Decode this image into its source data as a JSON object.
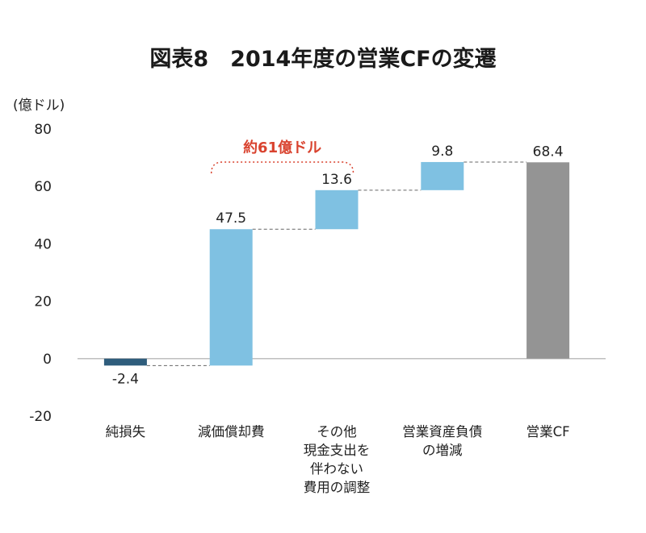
{
  "colors": {
    "background": "#ffffff",
    "negative_bar": "#2f5d7c",
    "change_bar": "#7fc1e2",
    "total_bar": "#949494",
    "annotation": "#d9432f",
    "connector": "#666666",
    "baseline": "#bfbfbf"
  },
  "chart_data": {
    "type": "bar",
    "subtype": "waterfall",
    "title": "図表8　2014年度の営業CFの変遷",
    "unit_label": "(億ドル)",
    "ylim": [
      -20,
      80
    ],
    "yticks": [
      "80",
      "60",
      "40",
      "20",
      "0",
      "-20"
    ],
    "ytick_values": [
      80,
      60,
      40,
      20,
      0,
      -20
    ],
    "grid": false,
    "legend": "none",
    "categories": [
      [
        "純損失"
      ],
      [
        "減価償却費"
      ],
      [
        "その他",
        "現金支出を",
        "伴わない",
        "費用の調整"
      ],
      [
        "営業資産負債",
        "の増減"
      ],
      [
        "営業CF"
      ]
    ],
    "values": [
      -2.4,
      47.5,
      13.6,
      9.8,
      68.4
    ],
    "value_labels": [
      "-2.4",
      "47.5",
      "13.6",
      "9.8",
      "68.4"
    ],
    "bar_kinds": [
      "negative",
      "change",
      "change",
      "change",
      "total"
    ],
    "annotation": {
      "text": "約61億ドル",
      "spans_categories": [
        1,
        2
      ]
    }
  }
}
